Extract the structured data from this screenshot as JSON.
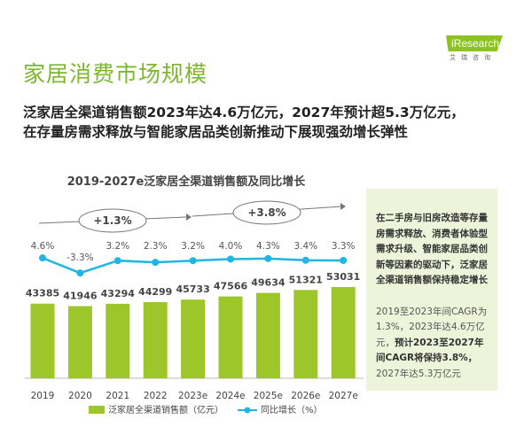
{
  "header": {
    "title": "家居消费市场规模",
    "subtitle_lines": [
      "泛家居全渠道销售额2023年达4.6万亿元，2027年预计超5.3万亿元，",
      "在存量房需求释放与智能家居品类创新推动下展现强劲增长弹性"
    ],
    "logo": "iResearch",
    "logo_cn": "艾瑞咨询"
  },
  "panel": {
    "bold_text": "在二手房与旧房改造等存量房需求释放、消费者体验型需求升级、智能家居品类创新等因素的驱动下，泛家居全渠道销售额保持稳定增长",
    "note_a": "2019至2023年间CAGR为1.3%，2023年达4.6万亿元，",
    "note_b": "预计2023至2027年间CAGR将保持3.8%，",
    "note_c": "2027年达5.3万亿元"
  },
  "chart_data": {
    "type": "bar+line",
    "title": "2019-2027e泛家居全渠道销售额及同比增长",
    "categories": [
      "2019",
      "2020",
      "2021",
      "2022",
      "2023e",
      "2024e",
      "2025e",
      "2026e",
      "2027e"
    ],
    "series": [
      {
        "name": "泛家居全渠道销售额（亿元）",
        "type": "bar",
        "values": [
          43385,
          41946,
          43294,
          44299,
          45733,
          47566,
          49634,
          51321,
          53031
        ],
        "color": "#9dc62b"
      },
      {
        "name": "同比增长（%）",
        "type": "line",
        "values": [
          4.6,
          -3.3,
          3.2,
          2.3,
          3.2,
          4.0,
          4.3,
          3.4,
          3.3
        ],
        "labels": [
          "4.6%",
          "-3.3%",
          "3.2%",
          "2.3%",
          "3.2%",
          "4.0%",
          "4.3%",
          "3.4%",
          "3.3%"
        ],
        "color": "#1fb5e5"
      }
    ],
    "annotations": [
      "+1.3%",
      "+3.8%"
    ],
    "legend": "bottom"
  }
}
